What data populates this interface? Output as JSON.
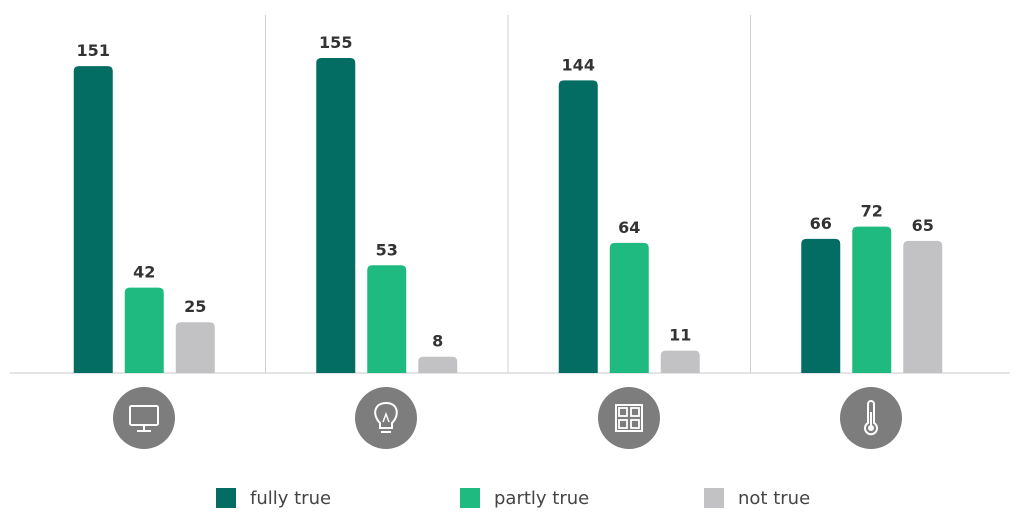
{
  "chart_data": {
    "type": "bar",
    "categories": [
      null,
      null,
      null,
      null
    ],
    "series": [
      {
        "name": "fully true",
        "color": "#036d63",
        "values": [
          151,
          155,
          144,
          66
        ]
      },
      {
        "name": "partly true",
        "color": "#1fba7f",
        "values": [
          42,
          53,
          64,
          72
        ]
      },
      {
        "name": "not true",
        "color": "#c2c2c4",
        "values": [
          25,
          8,
          11,
          65
        ]
      }
    ]
  }
}
